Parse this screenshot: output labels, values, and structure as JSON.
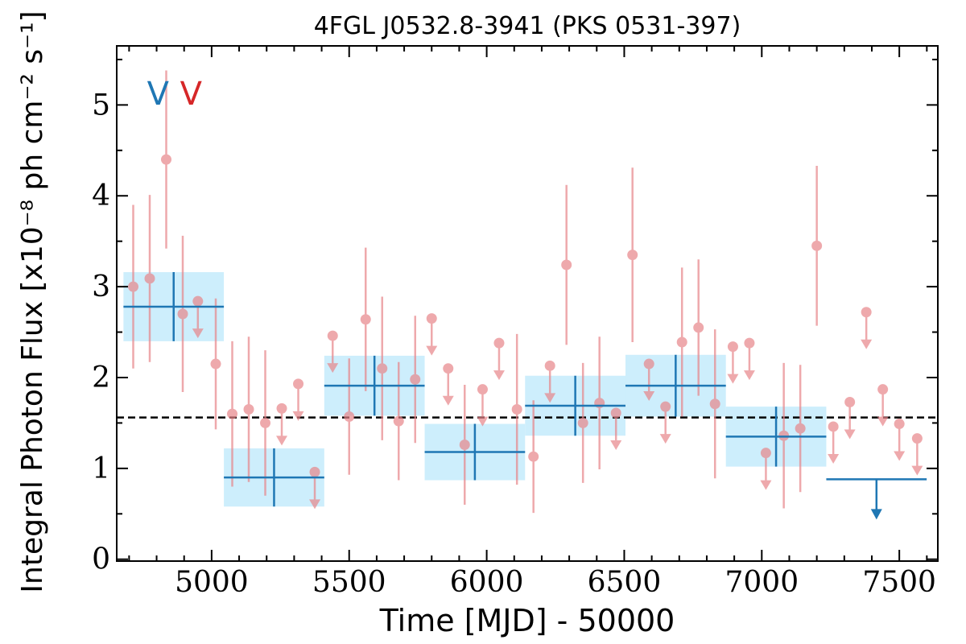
{
  "chart_data": {
    "type": "scatter",
    "title": "4FGL J0532.8-3941 (PKS 0531-397)",
    "xlabel": "Time [MJD] - 50000",
    "ylabel": "Integral Photon Flux [x10⁻⁸ ph cm⁻² s⁻¹]",
    "xlim": [
      4655,
      7640
    ],
    "ylim": [
      -0.02,
      5.65
    ],
    "xticks": [
      5000,
      5500,
      6000,
      6500,
      7000,
      7500
    ],
    "xtick_labels": [
      "5000",
      "5500",
      "6000",
      "6500",
      "7000",
      "7500"
    ],
    "yticks": [
      0,
      1,
      2,
      3,
      4,
      5
    ],
    "ytick_labels": [
      "0",
      "1",
      "2",
      "3",
      "4",
      "5"
    ],
    "mean_flux": 1.56,
    "markers": [
      {
        "label": "V",
        "x": 4805,
        "color": "#1f77b4"
      },
      {
        "label": "V",
        "x": 4925,
        "color": "#d62728"
      }
    ],
    "series": [
      {
        "color": "#e8858a",
        "bin_width_days": 60,
        "detections": [
          {
            "x": 4715,
            "y": 3.0,
            "err": 0.9
          },
          {
            "x": 4775,
            "y": 3.09,
            "err": 0.92
          },
          {
            "x": 4835,
            "y": 4.4,
            "err": 0.98
          },
          {
            "x": 4895,
            "y": 2.7,
            "err": 0.86
          },
          {
            "x": 5015,
            "y": 2.15,
            "err": 0.72
          },
          {
            "x": 5075,
            "y": 1.6,
            "err": 0.8
          },
          {
            "x": 5135,
            "y": 1.65,
            "err": 0.8
          },
          {
            "x": 5195,
            "y": 1.5,
            "err": 0.8
          },
          {
            "x": 5500,
            "y": 1.57,
            "err": 0.64
          },
          {
            "x": 5560,
            "y": 2.64,
            "err": 0.79
          },
          {
            "x": 5620,
            "y": 2.1,
            "err": 0.79
          },
          {
            "x": 5680,
            "y": 1.52,
            "err": 0.65
          },
          {
            "x": 5740,
            "y": 1.98,
            "err": 0.7
          },
          {
            "x": 5920,
            "y": 1.26,
            "err": 0.66
          },
          {
            "x": 6110,
            "y": 1.65,
            "err": 0.83
          },
          {
            "x": 6170,
            "y": 1.13,
            "err": 0.62
          },
          {
            "x": 6290,
            "y": 3.24,
            "err": 0.88
          },
          {
            "x": 6350,
            "y": 1.5,
            "err": 0.66
          },
          {
            "x": 6410,
            "y": 1.72,
            "err": 0.73
          },
          {
            "x": 6530,
            "y": 3.35,
            "err": 0.96
          },
          {
            "x": 6710,
            "y": 2.39,
            "err": 0.82
          },
          {
            "x": 6770,
            "y": 2.55,
            "err": 0.75
          },
          {
            "x": 6830,
            "y": 1.71,
            "err": 0.82
          },
          {
            "x": 7080,
            "y": 1.36,
            "err": 0.8
          },
          {
            "x": 7140,
            "y": 1.44,
            "err": 0.7
          },
          {
            "x": 7200,
            "y": 3.45,
            "err": 0.88
          }
        ],
        "upper_limits": [
          {
            "x": 4950,
            "y": 2.84
          },
          {
            "x": 5255,
            "y": 1.66
          },
          {
            "x": 5315,
            "y": 1.93
          },
          {
            "x": 5375,
            "y": 0.96
          },
          {
            "x": 5440,
            "y": 2.46
          },
          {
            "x": 5800,
            "y": 2.65
          },
          {
            "x": 5860,
            "y": 2.1
          },
          {
            "x": 5985,
            "y": 1.87
          },
          {
            "x": 6045,
            "y": 2.38
          },
          {
            "x": 6230,
            "y": 2.13
          },
          {
            "x": 6470,
            "y": 1.61
          },
          {
            "x": 6590,
            "y": 2.15
          },
          {
            "x": 6650,
            "y": 1.68
          },
          {
            "x": 6895,
            "y": 2.34
          },
          {
            "x": 6955,
            "y": 2.38
          },
          {
            "x": 7015,
            "y": 1.17
          },
          {
            "x": 7260,
            "y": 1.46
          },
          {
            "x": 7320,
            "y": 1.73
          },
          {
            "x": 7380,
            "y": 2.72
          },
          {
            "x": 7440,
            "y": 1.87
          },
          {
            "x": 7500,
            "y": 1.49
          },
          {
            "x": 7565,
            "y": 1.33
          }
        ]
      },
      {
        "color": "#1f77b4",
        "band_color": "#cdeefc",
        "bin_width_days": 365,
        "detections": [
          {
            "x": 4862,
            "y": 2.78,
            "err": 0.38
          },
          {
            "x": 5227,
            "y": 0.9,
            "err": 0.32
          },
          {
            "x": 5592,
            "y": 1.91,
            "err": 0.33
          },
          {
            "x": 5957,
            "y": 1.18,
            "err": 0.31
          },
          {
            "x": 6322,
            "y": 1.69,
            "err": 0.33
          },
          {
            "x": 6687,
            "y": 1.91,
            "err": 0.34
          },
          {
            "x": 7052,
            "y": 1.35,
            "err": 0.33
          }
        ],
        "upper_limits": [
          {
            "x": 7417,
            "y": 0.88
          }
        ]
      }
    ]
  }
}
